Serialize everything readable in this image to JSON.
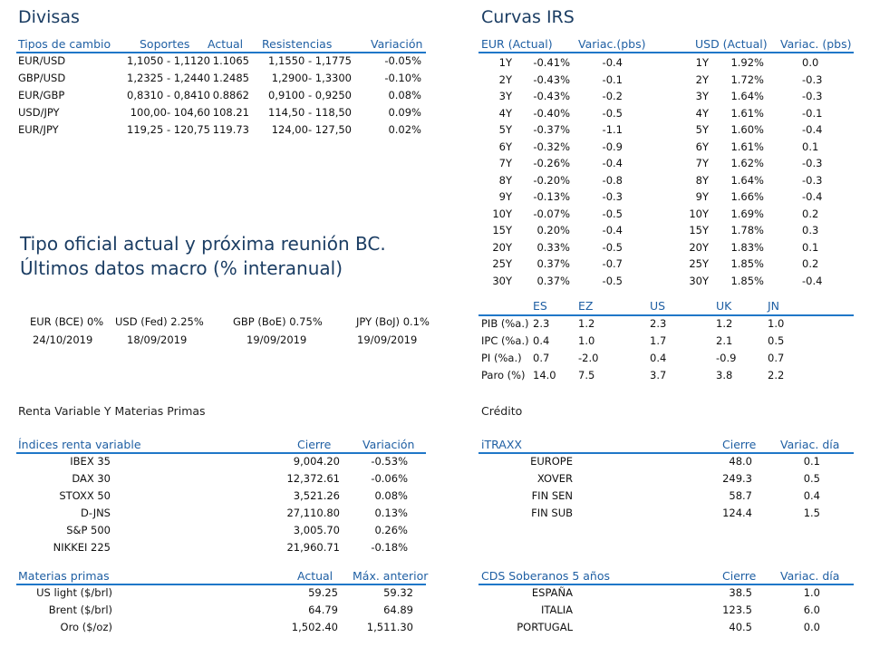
{
  "divisas": {
    "title": "Divisas",
    "headers": [
      "Tipos de cambio",
      "Soportes",
      "Actual",
      "Resistencias",
      "Variación"
    ],
    "rows": [
      [
        "EUR/USD",
        "1,1050 - 1,1120",
        "1.1065",
        "1,1550 - 1,1775",
        "-0.05%"
      ],
      [
        "GBP/USD",
        "1,2325 - 1,2440",
        "1.2485",
        "1,2900- 1,3300",
        "-0.10%"
      ],
      [
        "EUR/GBP",
        "0,8310 - 0,8410",
        "0.8862",
        "0,9100 - 0,9250",
        "0.08%"
      ],
      [
        "USD/JPY",
        "100,00- 104,60",
        "108.21",
        "114,50 - 118,50",
        "0.09%"
      ],
      [
        "EUR/JPY",
        "119,25 - 120,75",
        "119.73",
        "124,00- 127,50",
        "0.02%"
      ]
    ]
  },
  "irs": {
    "title": "Curvas IRS",
    "headers": [
      "EUR (Actual)",
      "Variac.(pbs)",
      "USD (Actual)",
      "Variac. (pbs)"
    ],
    "rows": [
      [
        "1Y",
        "-0.41%",
        "-0.4",
        "1Y",
        "1.92%",
        "0.0"
      ],
      [
        "2Y",
        "-0.43%",
        "-0.1",
        "2Y",
        "1.72%",
        "-0.3"
      ],
      [
        "3Y",
        "-0.43%",
        "-0.2",
        "3Y",
        "1.64%",
        "-0.3"
      ],
      [
        "4Y",
        "-0.40%",
        "-0.5",
        "4Y",
        "1.61%",
        "-0.1"
      ],
      [
        "5Y",
        "-0.37%",
        "-1.1",
        "5Y",
        "1.60%",
        "-0.4"
      ],
      [
        "6Y",
        "-0.32%",
        "-0.9",
        "6Y",
        "1.61%",
        "0.1"
      ],
      [
        "7Y",
        "-0.26%",
        "-0.4",
        "7Y",
        "1.62%",
        "-0.3"
      ],
      [
        "8Y",
        "-0.20%",
        "-0.8",
        "8Y",
        "1.64%",
        "-0.3"
      ],
      [
        "9Y",
        "-0.13%",
        "-0.3",
        "9Y",
        "1.66%",
        "-0.4"
      ],
      [
        "10Y",
        "-0.07%",
        "-0.5",
        "10Y",
        "1.69%",
        "0.2"
      ],
      [
        "15Y",
        "0.20%",
        "-0.4",
        "15Y",
        "1.78%",
        "0.3"
      ],
      [
        "20Y",
        "0.33%",
        "-0.5",
        "20Y",
        "1.83%",
        "0.1"
      ],
      [
        "25Y",
        "0.37%",
        "-0.7",
        "25Y",
        "1.85%",
        "0.2"
      ],
      [
        "30Y",
        "0.37%",
        "-0.5",
        "30Y",
        "1.85%",
        "-0.4"
      ]
    ]
  },
  "tipo_oficial": {
    "title_line1": "Tipo oficial actual y próxima reunión BC.",
    "title_line2": "Últimos datos macro (% interanual)",
    "rates": [
      "EUR (BCE) 0%",
      "USD (Fed) 2.25%",
      "GBP (BoE) 0.75%",
      "JPY (BoJ) 0.1%"
    ],
    "dates": [
      "24/10/2019",
      "18/09/2019",
      "19/09/2019",
      "19/09/2019"
    ]
  },
  "macro": {
    "headers": [
      "ES",
      "EZ",
      "US",
      "UK",
      "JN"
    ],
    "rows": [
      [
        "PIB (%a.)",
        "2.3",
        "1.2",
        "2.3",
        "1.2",
        "1.0"
      ],
      [
        "IPC (%a.)",
        "0.4",
        "1.0",
        "1.7",
        "2.1",
        "0.5"
      ],
      [
        "PI (%a.)",
        "0.7",
        "-2.0",
        "0.4",
        "-0.9",
        "0.7"
      ],
      [
        "Paro (%)",
        "14.0",
        "7.5",
        "3.7",
        "3.8",
        "2.2"
      ]
    ]
  },
  "renta_variable": {
    "section_title": "Renta Variable Y Materias Primas",
    "headers": [
      "Índices renta variable",
      "Cierre",
      "Variación"
    ],
    "rows": [
      [
        "IBEX 35",
        "9,004.20",
        "-0.53%"
      ],
      [
        "DAX 30",
        "12,372.61",
        "-0.06%"
      ],
      [
        "STOXX 50",
        "3,521.26",
        "0.08%"
      ],
      [
        "D-JNS",
        "27,110.80",
        "0.13%"
      ],
      [
        "S&P 500",
        "3,005.70",
        "0.26%"
      ],
      [
        "NIKKEI 225",
        "21,960.71",
        "-0.18%"
      ]
    ]
  },
  "materias_primas": {
    "headers": [
      "Materias primas",
      "Actual",
      "Máx. anterior"
    ],
    "rows": [
      [
        "US light ($/brl)",
        "59.25",
        "59.32"
      ],
      [
        "Brent ($/brl)",
        "64.79",
        "64.89"
      ],
      [
        "Oro ($/oz)",
        "1,502.40",
        "1,511.30"
      ]
    ]
  },
  "credito": {
    "section_title": "Crédito",
    "headers": [
      "iTRAXX",
      "Cierre",
      "Variac. día"
    ],
    "rows": [
      [
        "EUROPE",
        "48.0",
        "0.1"
      ],
      [
        "XOVER",
        "249.3",
        "0.5"
      ],
      [
        "FIN SEN",
        "58.7",
        "0.4"
      ],
      [
        "FIN SUB",
        "124.4",
        "1.5"
      ]
    ]
  },
  "cds": {
    "headers": [
      "CDS Soberanos 5 años",
      "Cierre",
      "Variac. día"
    ],
    "rows": [
      [
        "ESPAÑA",
        "38.5",
        "1.0"
      ],
      [
        "ITALIA",
        "123.5",
        "6.0"
      ],
      [
        "PORTUGAL",
        "40.5",
        "0.0"
      ]
    ]
  },
  "colors": {
    "header_text": "#1f5fa3",
    "rule": "#1f77c8",
    "title": "#1b3d63"
  }
}
